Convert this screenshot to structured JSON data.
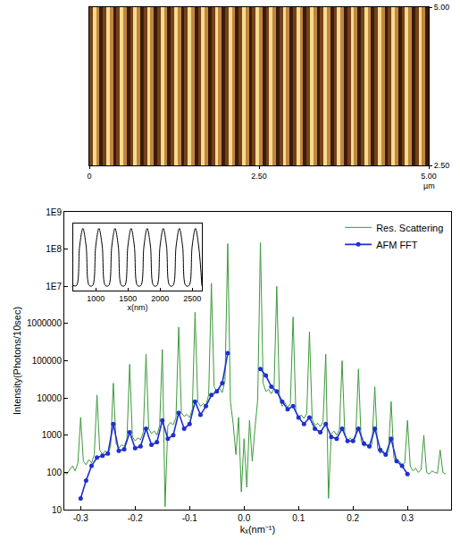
{
  "chart_data": [
    {
      "type": "heatmap",
      "xlabel": "µm",
      "x": [
        0.025,
        0.075,
        0.125,
        0.175,
        0.225,
        0.275,
        0.325,
        0.375,
        0.425,
        0.475,
        0.525,
        0.575,
        0.625,
        0.675,
        0.725,
        0.775,
        0.825,
        0.875,
        0.925,
        0.975,
        1.025,
        1.075,
        1.125,
        1.175,
        1.225,
        1.275,
        1.325,
        1.375,
        1.425,
        1.475,
        1.525,
        1.575,
        1.625,
        1.675,
        1.725,
        1.775,
        1.825,
        1.875,
        1.925,
        1.975,
        2.025,
        2.075,
        2.125,
        2.175,
        2.225,
        2.275,
        2.325,
        2.375,
        2.425,
        2.475,
        2.525,
        2.575,
        2.625,
        2.675,
        2.725,
        2.775,
        2.825,
        2.875,
        2.925,
        2.975,
        3.025,
        3.075,
        3.125,
        3.175,
        3.225,
        3.275,
        3.325,
        3.375,
        3.425,
        3.475,
        3.525,
        3.575,
        3.625,
        3.675,
        3.725,
        3.775,
        3.825,
        3.875,
        3.925,
        3.975,
        4.025,
        4.075,
        4.125,
        4.175,
        4.225,
        4.275,
        4.325,
        4.375,
        4.425,
        4.475,
        4.525,
        4.575,
        4.625,
        4.675,
        4.725,
        4.775,
        4.825,
        4.875,
        4.925,
        4.975
      ],
      "y": [
        2.5,
        5
      ],
      "z": [
        [
          0.3,
          0.9,
          0.6,
          0.1,
          0.3,
          0.9,
          0.6,
          0.1,
          0.3,
          0.9,
          0.6,
          0.1,
          0.3,
          0.9,
          0.6,
          0.1,
          0.3,
          0.9,
          0.6,
          0.1,
          0.3,
          0.9,
          0.6,
          0.1,
          0.3,
          0.9,
          0.6,
          0.1,
          0.3,
          0.9,
          0.6,
          0.1,
          0.3,
          0.9,
          0.6,
          0.1,
          0.3,
          0.9,
          0.6,
          0.1,
          0.3,
          0.9,
          0.6,
          0.1,
          0.3,
          0.9,
          0.6,
          0.1,
          0.3,
          0.9,
          0.6,
          0.1,
          0.3,
          0.9,
          0.6,
          0.1,
          0.3,
          0.9,
          0.6,
          0.1,
          0.3,
          0.9,
          0.6,
          0.1,
          0.3,
          0.9,
          0.6,
          0.1,
          0.3,
          0.9,
          0.6,
          0.1,
          0.3,
          0.9,
          0.6,
          0.1,
          0.3,
          0.9,
          0.6,
          0.1,
          0.3,
          0.9,
          0.6,
          0.1,
          0.3,
          0.9,
          0.6,
          0.1,
          0.3,
          0.9,
          0.6,
          0.1,
          0.3,
          0.9,
          0.6,
          0.1,
          0.3,
          0.9,
          0.6,
          0.1
        ]
      ],
      "xlim": [
        0,
        5
      ],
      "xticks": [
        0,
        {
          "value": 2.5,
          "label": "2.50"
        },
        {
          "value": 5,
          "label": "5.00"
        }
      ],
      "ylim": [
        2.5,
        5
      ],
      "yticks": [
        {
          "value": 2.5,
          "label": "2.50"
        },
        {
          "value": 5,
          "label": "5.00"
        }
      ]
    },
    {
      "type": "line",
      "xlabel": "kₓ(nm⁻¹)",
      "ylabel": "Intensity(Photons/10sec)",
      "log": "y",
      "grid": false,
      "legend": "upper right",
      "xlim": [
        -0.33,
        0.38
      ],
      "xticks": [
        -0.3,
        -0.2,
        -0.1,
        {
          "value": 0,
          "label": "0.0"
        },
        0.1,
        0.2,
        0.3
      ],
      "ylim": [
        10,
        1000000000
      ],
      "yticks": [
        10,
        100,
        1000,
        10000,
        100000,
        1000000,
        {
          "value": 10000000,
          "label": "1E7"
        },
        {
          "value": 100000000,
          "label": "1E8"
        },
        {
          "value": 1000000000,
          "label": "1E9"
        }
      ],
      "series": [
        {
          "name": "Res. Scattering",
          "color": "#3c9a3c",
          "line_style": "solid",
          "x": [
            -0.33,
            -0.325,
            -0.32,
            -0.315,
            -0.31,
            -0.305,
            -0.3,
            -0.295,
            -0.29,
            -0.285,
            -0.28,
            -0.275,
            -0.27,
            -0.265,
            -0.26,
            -0.255,
            -0.25,
            -0.245,
            -0.24,
            -0.235,
            -0.23,
            -0.225,
            -0.22,
            -0.215,
            -0.21,
            -0.205,
            -0.2,
            -0.195,
            -0.19,
            -0.185,
            -0.18,
            -0.175,
            -0.17,
            -0.165,
            -0.16,
            -0.155,
            -0.15,
            -0.145,
            -0.14,
            -0.135,
            -0.13,
            -0.125,
            -0.12,
            -0.115,
            -0.11,
            -0.105,
            -0.1,
            -0.095,
            -0.09,
            -0.085,
            -0.08,
            -0.075,
            -0.07,
            -0.065,
            -0.06,
            -0.055,
            -0.05,
            -0.045,
            -0.04,
            -0.035,
            -0.03,
            -0.025,
            -0.02,
            -0.015,
            -0.01,
            -0.005,
            0,
            0.005,
            0.01,
            0.015,
            0.02,
            0.025,
            0.03,
            0.035,
            0.04,
            0.045,
            0.05,
            0.055,
            0.06,
            0.065,
            0.07,
            0.075,
            0.08,
            0.085,
            0.09,
            0.095,
            0.1,
            0.105,
            0.11,
            0.115,
            0.12,
            0.125,
            0.13,
            0.135,
            0.14,
            0.145,
            0.15,
            0.155,
            0.16,
            0.165,
            0.17,
            0.175,
            0.18,
            0.185,
            0.19,
            0.195,
            0.2,
            0.205,
            0.21,
            0.215,
            0.22,
            0.225,
            0.23,
            0.235,
            0.24,
            0.245,
            0.25,
            0.255,
            0.26,
            0.265,
            0.27,
            0.275,
            0.28,
            0.285,
            0.29,
            0.295,
            0.3,
            0.305,
            0.31,
            0.315,
            0.32,
            0.325,
            0.33,
            0.335,
            0.34,
            0.345,
            0.35,
            0.355,
            0.36,
            0.365,
            0.37
          ],
          "values": [
            100,
            90,
            120,
            150,
            110,
            180,
            3000,
            200,
            160,
            220,
            180,
            300,
            12000,
            400,
            300,
            380,
            320,
            500,
            25000,
            600,
            450,
            550,
            500,
            800,
            80000,
            900,
            700,
            850,
            750,
            1200,
            150000,
            1500,
            1100,
            1300,
            1000,
            1800,
            200000,
            12,
            1800,
            2200,
            1900,
            3000,
            800000,
            4000,
            3200,
            3600,
            3000,
            5000,
            2000000,
            8000,
            6000,
            7000,
            6500,
            12000,
            12000000,
            20000,
            15000,
            18000,
            14000,
            30000,
            140000000,
            8000,
            2000,
            300,
            3000,
            30,
            800,
            40,
            2500,
            200,
            1500,
            9000,
            150000000,
            25000,
            15000,
            17000,
            13000,
            18000,
            10000000,
            10000,
            6000,
            7500,
            5500,
            7000,
            1500000,
            4500,
            3000,
            3500,
            2800,
            3800,
            600000,
            2800,
            1800,
            2100,
            1700,
            2300,
            150000,
            20,
            1100,
            1300,
            1000,
            1400,
            100000,
            1000,
            700,
            850,
            650,
            900,
            60000,
            700,
            500,
            550,
            450,
            600,
            20000,
            450,
            320,
            380,
            300,
            350,
            8000,
            250,
            180,
            200,
            160,
            180,
            2500,
            150,
            110,
            130,
            100,
            120,
            1000,
            100,
            90,
            110,
            100,
            95,
            400,
            100,
            90
          ]
        },
        {
          "name": "AFM FFT",
          "color": "#1f2fd0",
          "line_style": "solid",
          "marker": "circle",
          "x": [
            -0.3,
            -0.29,
            -0.28,
            -0.27,
            -0.26,
            -0.25,
            -0.24,
            -0.23,
            -0.22,
            -0.21,
            -0.2,
            -0.19,
            -0.18,
            -0.17,
            -0.16,
            -0.15,
            -0.14,
            -0.13,
            -0.12,
            -0.11,
            -0.1,
            -0.09,
            -0.08,
            -0.07,
            -0.06,
            -0.05,
            -0.04,
            -0.03,
            -0.02,
            -0.01,
            0,
            0.01,
            0.02,
            0.03,
            0.04,
            0.05,
            0.06,
            0.07,
            0.08,
            0.09,
            0.1,
            0.11,
            0.12,
            0.13,
            0.14,
            0.15,
            0.16,
            0.17,
            0.18,
            0.19,
            0.2,
            0.21,
            0.22,
            0.23,
            0.24,
            0.25,
            0.26,
            0.27,
            0.28,
            0.29,
            0.3
          ],
          "values": [
            20,
            60,
            150,
            250,
            280,
            320,
            2000,
            380,
            420,
            1200,
            450,
            500,
            1500,
            550,
            650,
            2500,
            800,
            1000,
            4000,
            1500,
            2000,
            8000,
            3500,
            6000,
            12000,
            15000,
            25000,
            160000,
            null,
            null,
            null,
            null,
            null,
            60000,
            40000,
            20000,
            15000,
            8000,
            5000,
            6000,
            3000,
            2000,
            3000,
            1500,
            1200,
            2000,
            900,
            800,
            1500,
            700,
            700,
            1500,
            600,
            500,
            1500,
            400,
            300,
            800,
            200,
            150,
            90
          ]
        }
      ]
    },
    {
      "type": "line",
      "xlabel": "x(nm)",
      "color": "#000000",
      "tick_labels": "x",
      "grid": false,
      "xlim": [
        650,
        2650
      ],
      "xticks": [
        1000,
        1500,
        2000,
        2500
      ],
      "ylim": [
        0,
        1.08
      ],
      "x": [
        650,
        700,
        750,
        800,
        850,
        900,
        950,
        1000,
        1050,
        1100,
        1150,
        1200,
        1250,
        1300,
        1350,
        1400,
        1450,
        1500,
        1550,
        1600,
        1650,
        1700,
        1750,
        1800,
        1850,
        1900,
        1950,
        2000,
        2050,
        2100,
        2150,
        2200,
        2250,
        2300,
        2350,
        2400,
        2450,
        2500,
        2550,
        2600,
        2650
      ],
      "values": [
        0.08,
        0.08,
        0.72,
        1,
        0.72,
        0.08,
        0.08,
        0.72,
        1,
        0.72,
        0.08,
        0.08,
        0.72,
        1,
        0.72,
        0.08,
        0.08,
        0.72,
        1,
        0.72,
        0.08,
        0.08,
        0.72,
        1,
        0.72,
        0.08,
        0.08,
        0.72,
        1,
        0.72,
        0.08,
        0.08,
        0.72,
        1,
        0.72,
        0.08,
        0.08,
        0.72,
        1,
        0.72,
        0.08
      ]
    }
  ]
}
